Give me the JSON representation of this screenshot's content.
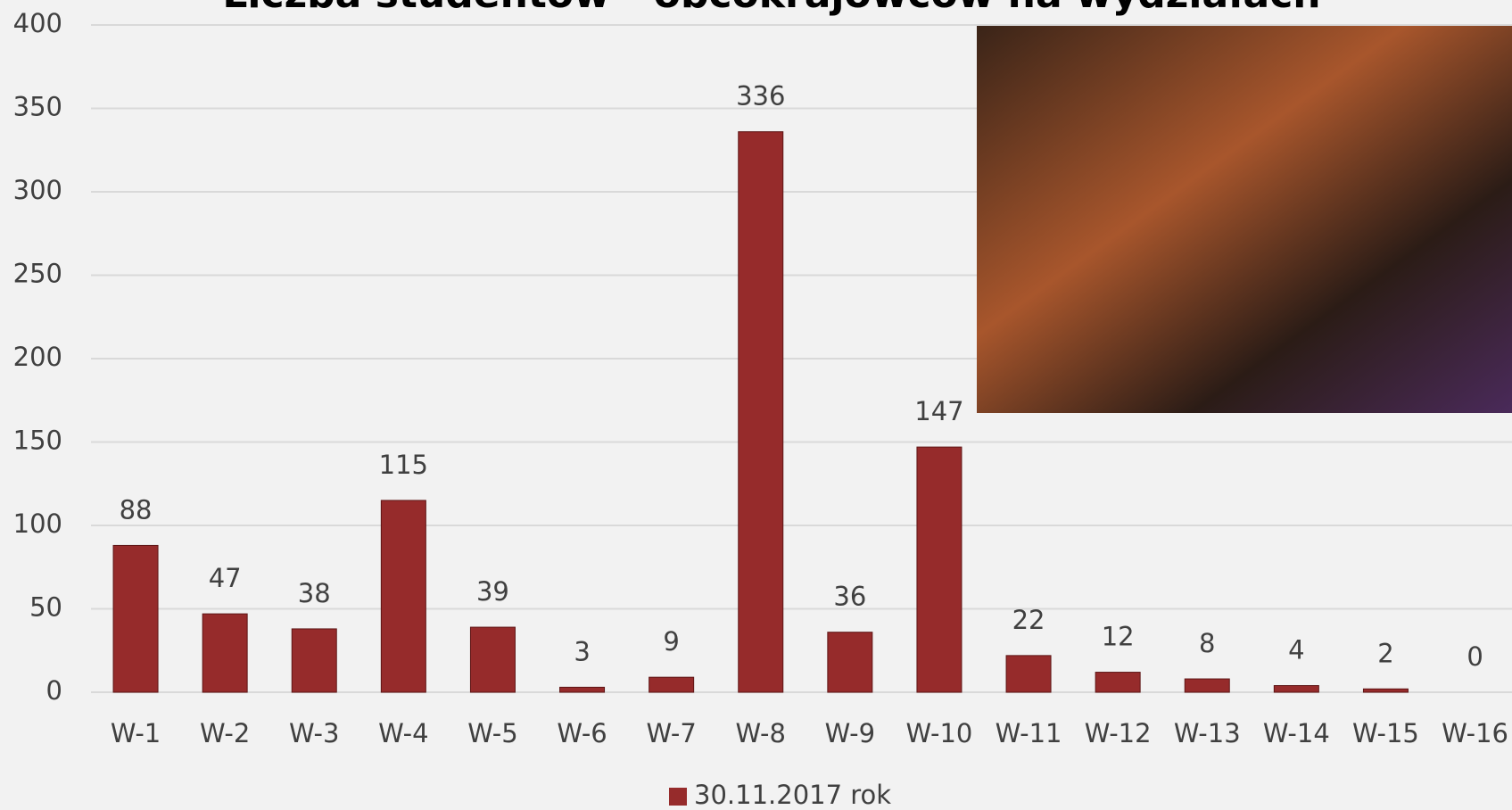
{
  "chart_data": {
    "type": "bar",
    "title": "Liczba studentów - obcokrajowców na wydziałach",
    "categories": [
      "W-1",
      "W-2",
      "W-3",
      "W-4",
      "W-5",
      "W-6",
      "W-7",
      "W-8",
      "W-9",
      "W-10",
      "W-11",
      "W-12",
      "W-13",
      "W-14",
      "W-15",
      "W-16"
    ],
    "series": [
      {
        "name": "30.11.2017 rok",
        "color": "#962b2b",
        "values": [
          88,
          47,
          38,
          115,
          39,
          3,
          9,
          336,
          36,
          147,
          22,
          12,
          8,
          4,
          2,
          0
        ]
      }
    ],
    "ylim": [
      0,
      400
    ],
    "yticks": [
      0,
      50,
      100,
      150,
      200,
      250,
      300,
      350,
      400
    ],
    "grid": true,
    "legend": "bottom"
  }
}
